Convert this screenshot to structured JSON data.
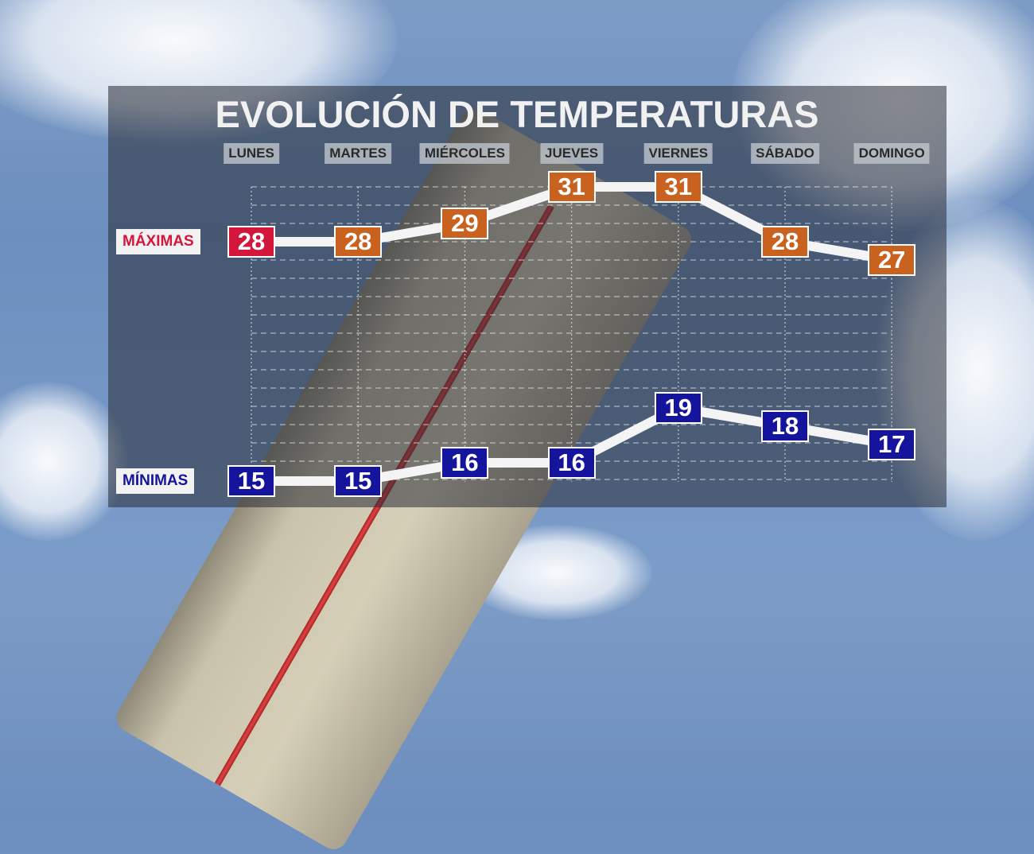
{
  "colors": {
    "max_first": "#d3173c",
    "max": "#c9611f",
    "min": "#14149c",
    "line": "#f4f4f4"
  },
  "chart_data": {
    "type": "line",
    "title": "EVOLUCIÓN DE TEMPERATURAS",
    "categories": [
      "LUNES",
      "MARTES",
      "MIÉRCOLES",
      "JUEVES",
      "VIERNES",
      "SÁBADO",
      "DOMINGO"
    ],
    "series": [
      {
        "name": "MÁXIMAS",
        "values": [
          28,
          28,
          29,
          31,
          31,
          28,
          27
        ]
      },
      {
        "name": "MÍNIMAS",
        "values": [
          15,
          15,
          16,
          16,
          19,
          18,
          17
        ]
      }
    ],
    "grid": true,
    "data_labels": true
  }
}
